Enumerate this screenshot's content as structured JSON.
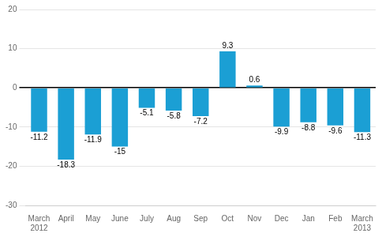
{
  "chart_data": {
    "type": "bar",
    "categories": [
      "March\n2012",
      "April",
      "May",
      "June",
      "July",
      "Aug",
      "Sep",
      "Oct",
      "Nov",
      "Dec",
      "Jan",
      "Feb",
      "March\n2013"
    ],
    "values": [
      -11.2,
      -18.3,
      -11.9,
      -15.0,
      -5.1,
      -5.8,
      -7.2,
      9.3,
      0.6,
      -9.9,
      -8.8,
      -9.6,
      -11.3
    ],
    "color": "#1b9fd4",
    "ylim": [
      -30,
      20
    ],
    "yticks": [
      -30,
      -20,
      -10,
      0,
      10,
      20
    ],
    "grid": true,
    "data_labels": true
  }
}
